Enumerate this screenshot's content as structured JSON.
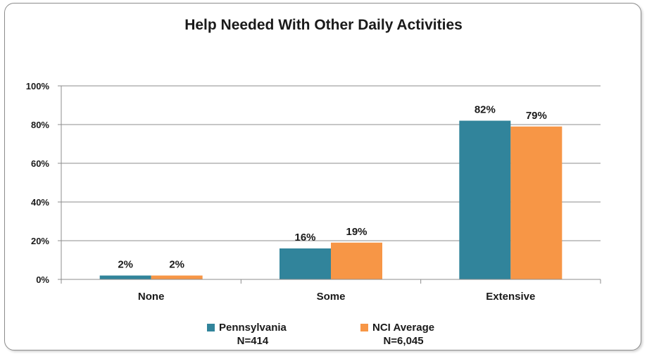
{
  "chart_data": {
    "type": "bar",
    "title": "Help Needed With Other Daily Activities",
    "categories": [
      "None",
      "Some",
      "Extensive"
    ],
    "ylim": [
      0,
      100
    ],
    "yticks": [
      0,
      20,
      40,
      60,
      80,
      100
    ],
    "ytick_labels": [
      "0%",
      "20%",
      "40%",
      "60%",
      "80%",
      "100%"
    ],
    "grid": true,
    "legend_position": "bottom",
    "series": [
      {
        "name": "Pennsylvania",
        "n_label": "N=414",
        "color": "#31849b",
        "values": [
          2,
          16,
          82
        ],
        "labels": [
          "2%",
          "16%",
          "82%"
        ]
      },
      {
        "name": "NCI Average",
        "n_label": "N=6,045",
        "color": "#f79646",
        "values": [
          2,
          19,
          79
        ],
        "labels": [
          "2%",
          "19%",
          "79%"
        ]
      }
    ]
  }
}
